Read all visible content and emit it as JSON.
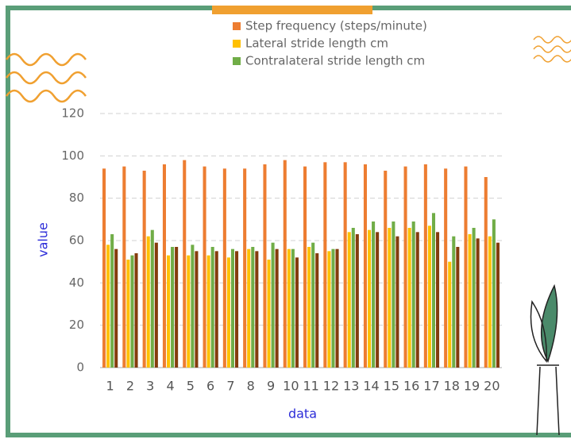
{
  "chart_data": {
    "type": "bar",
    "x_label": "data",
    "y_label": "value",
    "categories": [
      "1",
      "2",
      "3",
      "4",
      "5",
      "6",
      "7",
      "8",
      "9",
      "10",
      "11",
      "12",
      "13",
      "14",
      "15",
      "16",
      "17",
      "18",
      "19",
      "20"
    ],
    "series": [
      {
        "name": "Step frequency (steps/minute)",
        "color": "#ed7d31",
        "values": [
          94,
          95,
          93,
          96,
          98,
          95,
          94,
          94,
          96,
          98,
          95,
          97,
          97,
          96,
          93,
          95,
          96,
          94,
          95,
          90
        ]
      },
      {
        "name": "Lateral stride length cm",
        "color": "#ffc000",
        "values": [
          58,
          51,
          62,
          53,
          53,
          53,
          52,
          56,
          51,
          56,
          57,
          55,
          64,
          65,
          66,
          66,
          67,
          50,
          63,
          62
        ]
      },
      {
        "name": "Contralateral stride length cm",
        "color": "#70ad47",
        "values": [
          63,
          53,
          65,
          57,
          58,
          57,
          56,
          57,
          59,
          56,
          59,
          56,
          66,
          69,
          69,
          69,
          73,
          62,
          66,
          70
        ]
      },
      {
        "color": "#843c0c",
        "values": [
          56,
          54,
          59,
          57,
          55,
          55,
          55,
          55,
          56,
          52,
          54,
          56,
          63,
          64,
          62,
          64,
          64,
          57,
          61,
          59
        ]
      }
    ],
    "ylim": [
      0,
      120
    ],
    "yticks": [
      0,
      20,
      40,
      60,
      80,
      100,
      120
    ],
    "grid": true
  }
}
